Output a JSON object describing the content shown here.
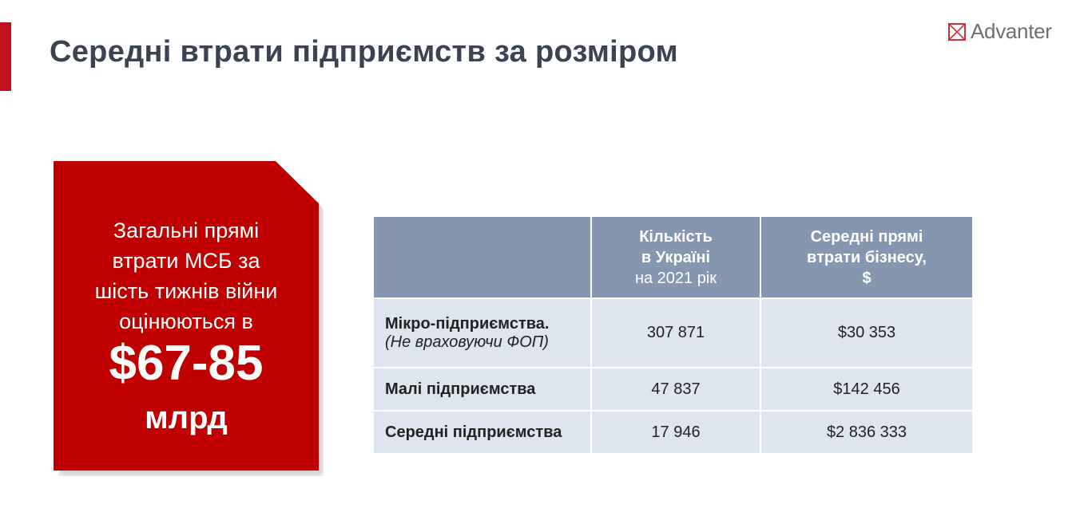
{
  "header": {
    "title": "Середні втрати підприємств за розміром",
    "logo_text": "Advanter"
  },
  "callout": {
    "text": "Загальні прямі втрати МСБ за шість тижнів війни оцінюються в",
    "amount": "$67-85",
    "unit": "млрд"
  },
  "table": {
    "headers": [
      {
        "line1": "",
        "sub": ""
      },
      {
        "line1": "Кількість в Україні",
        "sub": "на 2021 рік"
      },
      {
        "line1": "Середні прямі втрати бізнесу, $",
        "sub": ""
      }
    ],
    "rows": [
      {
        "label": "Мікро-підприємства.",
        "note": "(Не враховуючи ФОП)",
        "count": "307 871",
        "loss": "$30 353"
      },
      {
        "label": "Малі підприємства",
        "note": "",
        "count": "47 837",
        "loss": "$142 456"
      },
      {
        "label": "Середні підприємства",
        "note": "",
        "count": "17 946",
        "loss": "$2 836 333"
      }
    ]
  },
  "colors": {
    "accent": "#c00000",
    "header_bg": "#8496b0",
    "row_bg": "#dfe5ef"
  }
}
